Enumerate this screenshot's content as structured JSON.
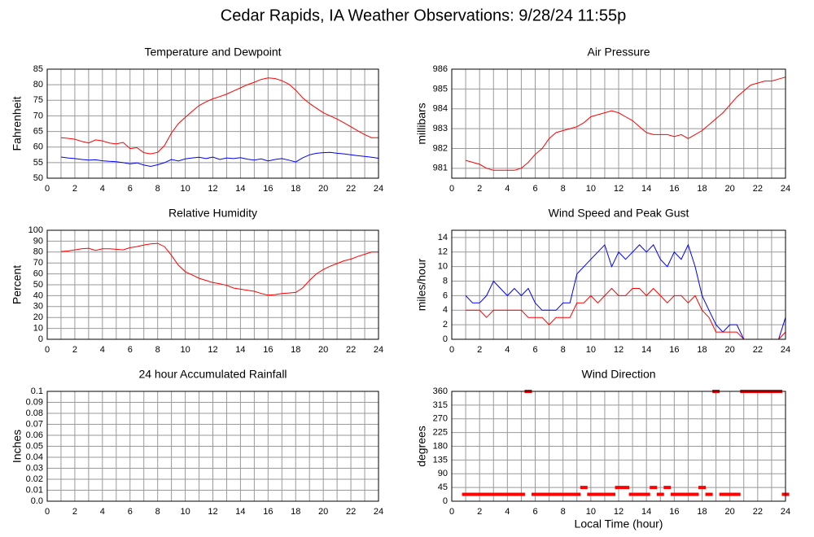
{
  "title": "Cedar Rapids, IA Weather Observations: 9/28/24 11:55p",
  "chart_data": [
    {
      "type": "line",
      "title": "Temperature and Dewpoint",
      "ylabel": "Fahrenheit",
      "x": [
        1,
        1.5,
        2,
        2.5,
        3,
        3.5,
        4,
        4.5,
        5,
        5.5,
        6,
        6.5,
        7,
        7.5,
        8,
        8.5,
        9,
        9.5,
        10,
        10.5,
        11,
        11.5,
        12,
        12.5,
        13,
        13.5,
        14,
        14.5,
        15,
        15.5,
        16,
        16.5,
        17,
        17.5,
        18,
        18.5,
        19,
        19.5,
        20,
        20.5,
        21,
        21.5,
        22,
        22.5,
        23,
        23.5,
        24
      ],
      "series": [
        {
          "color": "#ff0000",
          "values": [
            63,
            62.8,
            62.5,
            61.8,
            61.3,
            62.3,
            62,
            61.3,
            61,
            61.5,
            59.5,
            59.8,
            58.2,
            57.8,
            58.3,
            60.5,
            64.5,
            67.5,
            69.5,
            71.5,
            73.3,
            74.5,
            75.5,
            76.2,
            77,
            78,
            79,
            80,
            80.8,
            81.7,
            82.2,
            82,
            81.3,
            80.2,
            78.3,
            75.8,
            74,
            72.5,
            71,
            70,
            69,
            67.8,
            66.5,
            65.2,
            64,
            63,
            63
          ]
        },
        {
          "color": "#0000ff",
          "values": [
            56.8,
            56.5,
            56.3,
            56,
            55.8,
            55.9,
            55.6,
            55.4,
            55.3,
            55,
            54.6,
            54.9,
            54.2,
            53.8,
            54.3,
            55,
            56,
            55.5,
            56.2,
            56.5,
            56.7,
            56.3,
            56.8,
            56,
            56.5,
            56.3,
            56.6,
            56.1,
            55.8,
            56.2,
            55.5,
            56,
            56.3,
            55.8,
            55.2,
            56.5,
            57.5,
            58,
            58.2,
            58.3,
            58,
            57.8,
            57.5,
            57.2,
            57,
            56.7,
            56.4
          ]
        }
      ],
      "xlim": [
        0,
        24
      ],
      "xticks": [
        0,
        2,
        4,
        6,
        8,
        10,
        12,
        14,
        16,
        18,
        20,
        22,
        24
      ],
      "minor_xticks": [
        1,
        3,
        5,
        7,
        9,
        11,
        13,
        15,
        17,
        19,
        21,
        23
      ],
      "ylim": [
        50,
        85
      ],
      "yticks": [
        50,
        55,
        60,
        65,
        70,
        75,
        80,
        85
      ],
      "grid": true
    },
    {
      "type": "line",
      "title": "Air Pressure",
      "ylabel": "millibars",
      "x": [
        1,
        1.5,
        2,
        2.5,
        3,
        3.5,
        4,
        4.5,
        5,
        5.5,
        6,
        6.5,
        7,
        7.5,
        8,
        8.5,
        9,
        9.5,
        10,
        10.5,
        11,
        11.5,
        12,
        12.5,
        13,
        13.5,
        14,
        14.5,
        15,
        15.5,
        16,
        16.5,
        17,
        17.5,
        18,
        18.5,
        19,
        19.5,
        20,
        20.5,
        21,
        21.5,
        22,
        22.5,
        23,
        23.5,
        24
      ],
      "series": [
        {
          "color": "#ff0000",
          "values": [
            981.4,
            981.3,
            981.2,
            981.0,
            980.9,
            980.9,
            980.9,
            980.9,
            981.0,
            981.3,
            981.7,
            982.0,
            982.5,
            982.8,
            982.9,
            983.0,
            983.1,
            983.3,
            983.6,
            983.7,
            983.8,
            983.9,
            983.8,
            983.6,
            983.4,
            983.1,
            982.8,
            982.7,
            982.7,
            982.7,
            982.6,
            982.7,
            982.5,
            982.7,
            982.9,
            983.2,
            983.5,
            983.8,
            984.2,
            984.6,
            984.9,
            985.2,
            985.3,
            985.4,
            985.4,
            985.5,
            985.6
          ]
        }
      ],
      "xlim": [
        0,
        24
      ],
      "xticks": [
        0,
        2,
        4,
        6,
        8,
        10,
        12,
        14,
        16,
        18,
        20,
        22,
        24
      ],
      "minor_xticks": [
        1,
        3,
        5,
        7,
        9,
        11,
        13,
        15,
        17,
        19,
        21,
        23
      ],
      "ylim": [
        980.5,
        986
      ],
      "yticks": [
        981,
        982,
        983,
        984,
        985,
        986
      ],
      "grid": true
    },
    {
      "type": "line",
      "title": "Relative Humidity",
      "ylabel": "Percent",
      "x": [
        1,
        1.5,
        2,
        2.5,
        3,
        3.5,
        4,
        4.5,
        5,
        5.5,
        6,
        6.5,
        7,
        7.5,
        8,
        8.5,
        9,
        9.5,
        10,
        10.5,
        11,
        11.5,
        12,
        12.5,
        13,
        13.5,
        14,
        14.5,
        15,
        15.5,
        16,
        16.5,
        17,
        17.5,
        18,
        18.5,
        19,
        19.5,
        20,
        20.5,
        21,
        21.5,
        22,
        22.5,
        23,
        23.5,
        24
      ],
      "series": [
        {
          "color": "#ff0000",
          "values": [
            80.5,
            81,
            82,
            83,
            83.5,
            81.5,
            83,
            83,
            82.5,
            82,
            84,
            85,
            86.5,
            87.5,
            88,
            85,
            77,
            68,
            62,
            59,
            56,
            54,
            52,
            51,
            49.5,
            47,
            46,
            45,
            44,
            42,
            40.5,
            41,
            42,
            42.5,
            43,
            47,
            54,
            60,
            64,
            67,
            69.5,
            72,
            73.5,
            76,
            78,
            80,
            80
          ]
        }
      ],
      "xlim": [
        0,
        24
      ],
      "xticks": [
        0,
        2,
        4,
        6,
        8,
        10,
        12,
        14,
        16,
        18,
        20,
        22,
        24
      ],
      "minor_xticks": [
        1,
        3,
        5,
        7,
        9,
        11,
        13,
        15,
        17,
        19,
        21,
        23
      ],
      "ylim": [
        0,
        100
      ],
      "yticks": [
        0,
        10,
        20,
        30,
        40,
        50,
        60,
        70,
        80,
        90,
        100
      ],
      "grid": true
    },
    {
      "type": "line",
      "title": "Wind Speed and Peak Gust",
      "ylabel": "miles/hour",
      "x": [
        1,
        1.5,
        2,
        2.5,
        3,
        3.5,
        4,
        4.5,
        5,
        5.5,
        6,
        6.5,
        7,
        7.5,
        8,
        8.5,
        9,
        9.5,
        10,
        10.5,
        11,
        11.5,
        12,
        12.5,
        13,
        13.5,
        14,
        14.5,
        15,
        15.5,
        16,
        16.5,
        17,
        17.5,
        18,
        18.5,
        19,
        19.5,
        20,
        20.5,
        21,
        21.5,
        22,
        22.5,
        23,
        23.5,
        24
      ],
      "series": [
        {
          "color": "#0000ff",
          "values": [
            6,
            5,
            5,
            6,
            8,
            7,
            6,
            7,
            6,
            7,
            5,
            4,
            4,
            4,
            5,
            5,
            9,
            10,
            11,
            12,
            13,
            10,
            12,
            11,
            12,
            13,
            12,
            13,
            11,
            10,
            12,
            11,
            13,
            10,
            6,
            4,
            2,
            1,
            2,
            2,
            0,
            0,
            0,
            0,
            0,
            0,
            3
          ]
        },
        {
          "color": "#ff0000",
          "values": [
            4,
            4,
            4,
            3,
            4,
            4,
            4,
            4,
            4,
            3,
            3,
            3,
            2,
            3,
            3,
            3,
            5,
            5,
            6,
            5,
            6,
            7,
            6,
            6,
            7,
            7,
            6,
            7,
            6,
            5,
            6,
            6,
            5,
            6,
            4,
            3,
            1,
            1,
            1,
            1,
            0,
            0,
            0,
            0,
            0,
            0,
            1
          ]
        }
      ],
      "xlim": [
        0,
        24
      ],
      "xticks": [
        0,
        2,
        4,
        6,
        8,
        10,
        12,
        14,
        16,
        18,
        20,
        22,
        24
      ],
      "minor_xticks": [
        1,
        3,
        5,
        7,
        9,
        11,
        13,
        15,
        17,
        19,
        21,
        23
      ],
      "ylim": [
        0,
        15
      ],
      "yticks": [
        0,
        2,
        4,
        6,
        8,
        10,
        12,
        14
      ],
      "grid": true
    },
    {
      "type": "line",
      "title": "24 hour Accumulated Rainfall",
      "ylabel": "Inches",
      "x": [
        1,
        1.5,
        2,
        2.5,
        3,
        3.5,
        4,
        4.5,
        5,
        5.5,
        6,
        6.5,
        7,
        7.5,
        8,
        8.5,
        9,
        9.5,
        10,
        10.5,
        11,
        11.5,
        12,
        12.5,
        13,
        13.5,
        14,
        14.5,
        15,
        15.5,
        16,
        16.5,
        17,
        17.5,
        18,
        18.5,
        19,
        19.5,
        20,
        20.5,
        21,
        21.5,
        22,
        22.5,
        23,
        23.5,
        24
      ],
      "series": [
        {
          "color": "#ff0000",
          "values": [
            0,
            0,
            0,
            0,
            0,
            0,
            0,
            0,
            0,
            0,
            0,
            0,
            0,
            0,
            0,
            0,
            0,
            0,
            0,
            0,
            0,
            0,
            0,
            0,
            0,
            0,
            0,
            0,
            0,
            0,
            0,
            0,
            0,
            0,
            0,
            0,
            0,
            0,
            0,
            0,
            0,
            0,
            0,
            0,
            0,
            0,
            0
          ]
        }
      ],
      "xlim": [
        0,
        24
      ],
      "xticks": [
        0,
        2,
        4,
        6,
        8,
        10,
        12,
        14,
        16,
        18,
        20,
        22,
        24
      ],
      "minor_xticks": [
        1,
        3,
        5,
        7,
        9,
        11,
        13,
        15,
        17,
        19,
        21,
        23
      ],
      "ylim": [
        0,
        0.1
      ],
      "yticks": [
        {
          "value": 0,
          "label": "0.0"
        },
        0.01,
        0.02,
        0.03,
        0.04,
        0.05,
        0.06,
        0.07,
        0.08,
        0.09,
        0.1
      ],
      "grid": true
    },
    {
      "type": "scatter",
      "title": "Wind Direction",
      "ylabel": "degrees",
      "xlabel": "Local Time (hour)",
      "x": [
        1,
        1.5,
        2,
        2.5,
        3,
        3.5,
        4,
        4.5,
        5,
        5.5,
        6,
        6.5,
        7,
        7.5,
        8,
        8.5,
        9,
        9.5,
        10,
        10.5,
        11,
        11.5,
        12,
        12.5,
        13,
        13.5,
        14,
        14.5,
        15,
        15.5,
        16,
        16.5,
        17,
        17.5,
        18,
        18.5,
        19,
        19.5,
        20,
        20.5,
        21,
        21.5,
        22,
        22.5,
        23,
        23.5,
        24
      ],
      "series": [
        {
          "color": "#ff0000",
          "values": [
            22.5,
            22.5,
            22.5,
            22.5,
            22.5,
            22.5,
            22.5,
            22.5,
            22.5,
            360,
            22.5,
            22.5,
            22.5,
            22.5,
            22.5,
            22.5,
            22.5,
            45,
            22.5,
            22.5,
            22.5,
            22.5,
            45,
            45,
            22.5,
            22.5,
            22.5,
            45,
            22.5,
            45,
            22.5,
            22.5,
            22.5,
            22.5,
            45,
            22.5,
            360,
            22.5,
            22.5,
            22.5,
            360,
            360,
            360,
            360,
            360,
            360,
            22.5
          ]
        }
      ],
      "xlim": [
        0,
        24
      ],
      "xticks": [
        0,
        2,
        4,
        6,
        8,
        10,
        12,
        14,
        16,
        18,
        20,
        22,
        24
      ],
      "minor_xticks": [
        1,
        3,
        5,
        7,
        9,
        11,
        13,
        15,
        17,
        19,
        21,
        23
      ],
      "ylim": [
        0,
        360
      ],
      "yticks": [
        0,
        45,
        90,
        135,
        180,
        225,
        270,
        315,
        360
      ],
      "grid": true
    }
  ]
}
